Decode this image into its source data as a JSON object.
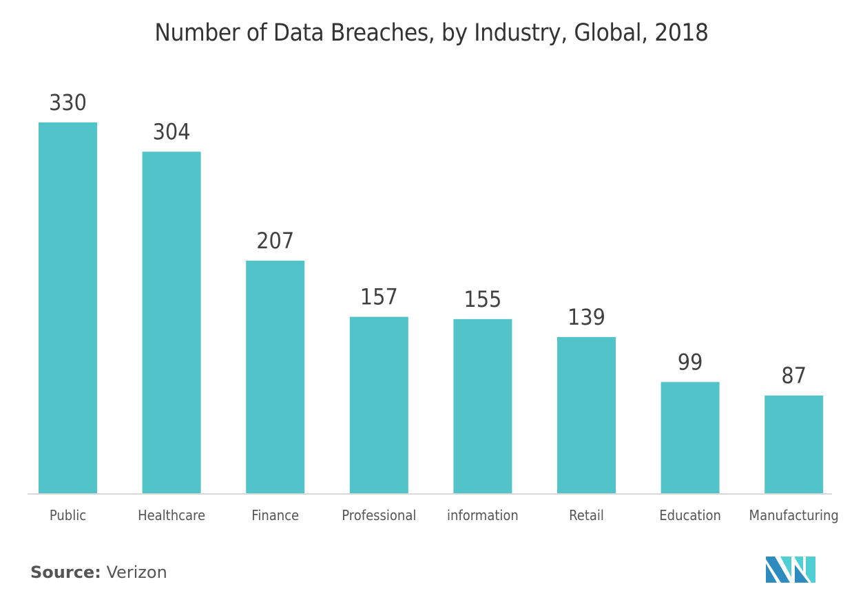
{
  "chart_data": {
    "type": "bar",
    "title": "Number of Data Breaches, by Industry, Global, 2018",
    "categories": [
      "Public",
      "Healthcare",
      "Finance",
      "Professional",
      "information",
      "Retail",
      "Education",
      "Manufacturing"
    ],
    "values": [
      330,
      304,
      207,
      157,
      155,
      139,
      99,
      87
    ],
    "data_labels": [
      "330",
      "304",
      "207",
      "157",
      "155",
      "139",
      "99",
      "87"
    ],
    "xlabel": "",
    "ylabel": "",
    "ylim": [
      0,
      330
    ],
    "grid": false,
    "legend": "none",
    "bar_color": "#52c3c9"
  },
  "source": {
    "label": "Source:",
    "value": "Verizon"
  },
  "logo": {
    "dark_color": "#2e8bc0",
    "light_color": "#4fcfd4"
  }
}
